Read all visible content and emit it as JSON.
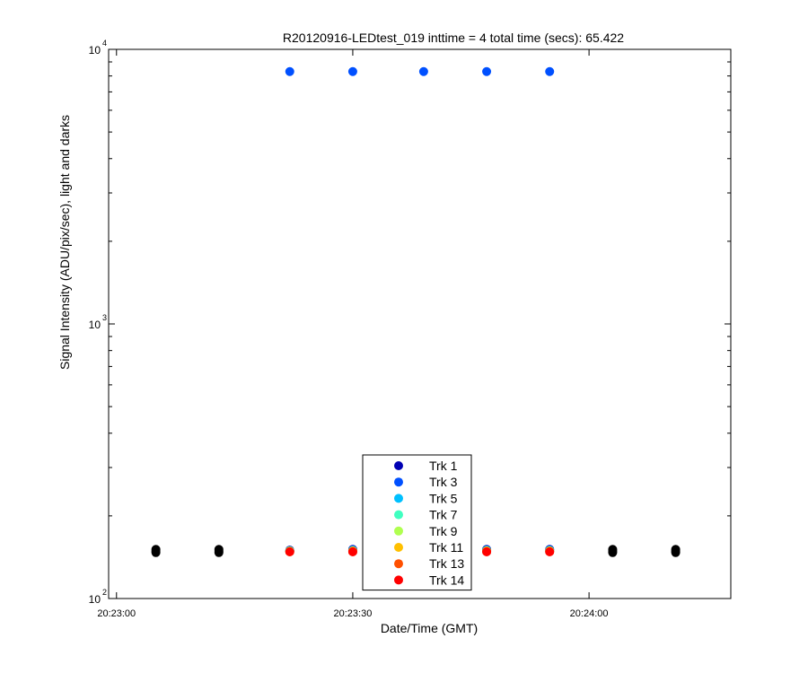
{
  "chart_data": {
    "type": "scatter",
    "title": "R20120916-LEDtest_019 inttime = 4 total time (secs): 65.422",
    "xlabel": "Date/Time (GMT)",
    "ylabel": "Signal Intensity (ADU/pix/sec), light and darks",
    "x_scale": "time",
    "y_scale": "log",
    "xlim": [
      "20:22:59",
      "20:24:18"
    ],
    "ylim": [
      100,
      10000
    ],
    "x_ticks": [
      {
        "time": "20:23:00",
        "label": "20:23:00"
      },
      {
        "time": "20:23:30",
        "label": "20:23:30"
      },
      {
        "time": "20:24:00",
        "label": "20:24:00"
      }
    ],
    "y_ticks": [
      {
        "value": 100,
        "base": "10",
        "exp": "2"
      },
      {
        "value": 1000,
        "base": "10",
        "exp": "3"
      },
      {
        "value": 10000,
        "base": "10",
        "exp": "4"
      }
    ],
    "grid": false,
    "legend_position": "bottom-center",
    "series": [
      {
        "name": "Trk 1",
        "color": "#0000b4",
        "x": [
          "20:23:22",
          "20:23:30",
          "20:23:39",
          "20:23:47",
          "20:23:55"
        ],
        "y": [
          150,
          151,
          150,
          151,
          151
        ]
      },
      {
        "name": "Trk 3",
        "color": "#0050ff",
        "x": [
          "20:23:22",
          "20:23:30",
          "20:23:39",
          "20:23:47",
          "20:23:55"
        ],
        "y": [
          8300,
          8300,
          8300,
          8300,
          8300
        ]
      },
      {
        "name": "Trk 5",
        "color": "#00c0ff",
        "x": [
          "20:23:22",
          "20:23:30",
          "20:23:39",
          "20:23:47",
          "20:23:55"
        ],
        "y": [
          149,
          150,
          149,
          150,
          150
        ]
      },
      {
        "name": "Trk 7",
        "color": "#40ffc0",
        "x": [
          "20:23:22",
          "20:23:30",
          "20:23:39",
          "20:23:47",
          "20:23:55"
        ],
        "y": [
          149,
          149,
          149,
          149,
          149
        ]
      },
      {
        "name": "Trk 9",
        "color": "#b0ff50",
        "x": [
          "20:23:22",
          "20:23:30",
          "20:23:39",
          "20:23:47",
          "20:23:55"
        ],
        "y": [
          149,
          149,
          149,
          149,
          149
        ]
      },
      {
        "name": "Trk 11",
        "color": "#ffc000",
        "x": [
          "20:23:22",
          "20:23:30",
          "20:23:39",
          "20:23:47",
          "20:23:55"
        ],
        "y": [
          148,
          149,
          148,
          149,
          149
        ]
      },
      {
        "name": "Trk 13",
        "color": "#ff5000",
        "x": [
          "20:23:22",
          "20:23:30",
          "20:23:39",
          "20:23:47",
          "20:23:55"
        ],
        "y": [
          148,
          148,
          148,
          148,
          148
        ]
      },
      {
        "name": "Trk 14",
        "color": "#ff0000",
        "x": [
          "20:23:22",
          "20:23:30",
          "20:23:39",
          "20:23:47",
          "20:23:55"
        ],
        "y": [
          148,
          148,
          148,
          148,
          148
        ]
      }
    ],
    "darks": {
      "color": "#000000",
      "x": [
        "20:23:05",
        "20:23:05",
        "20:23:05",
        "20:23:13",
        "20:23:13",
        "20:23:13",
        "20:24:03",
        "20:24:03",
        "20:24:03",
        "20:24:11",
        "20:24:11",
        "20:24:11"
      ],
      "y": [
        147,
        149,
        151,
        147,
        149,
        151,
        147,
        149,
        151,
        147,
        149,
        151
      ]
    }
  }
}
